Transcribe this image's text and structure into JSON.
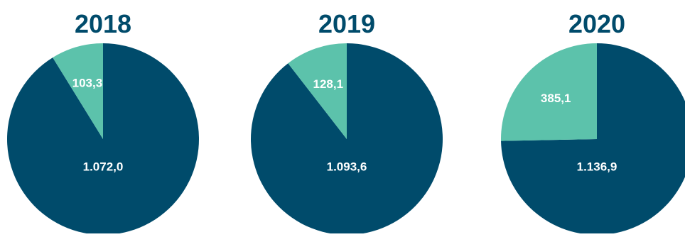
{
  "colors": {
    "dark_slice": "#004b6b",
    "light_slice": "#5cc2ab",
    "title": "#004b6b",
    "label": "#ffffff"
  },
  "chart_data": [
    {
      "type": "pie",
      "title": "2018",
      "slices": [
        {
          "label": "1.072,0",
          "value": 1072.0,
          "color": "#004b6b"
        },
        {
          "label": "103,3",
          "value": 103.3,
          "color": "#5cc2ab"
        }
      ]
    },
    {
      "type": "pie",
      "title": "2019",
      "slices": [
        {
          "label": "1.093,6",
          "value": 1093.6,
          "color": "#004b6b"
        },
        {
          "label": "128,1",
          "value": 128.1,
          "color": "#5cc2ab"
        }
      ]
    },
    {
      "type": "pie",
      "title": "2020",
      "slices": [
        {
          "label": "1.136,9",
          "value": 1136.9,
          "color": "#004b6b"
        },
        {
          "label": "385,1",
          "value": 385.1,
          "color": "#5cc2ab"
        }
      ]
    }
  ]
}
